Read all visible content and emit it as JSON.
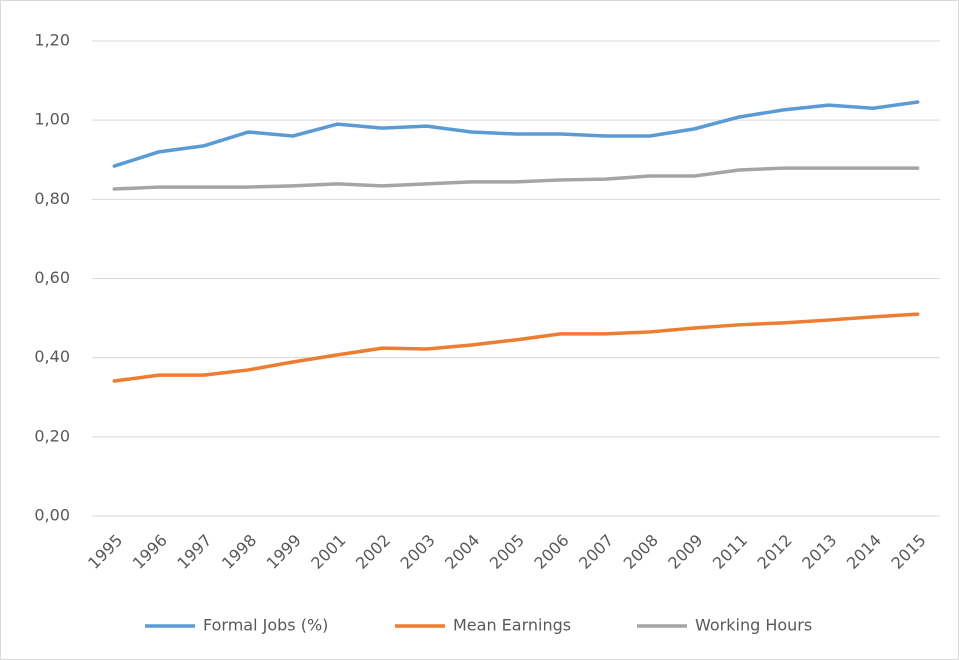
{
  "chart_data": {
    "type": "line",
    "categories": [
      "1995",
      "1996",
      "1997",
      "1998",
      "1999",
      "2001",
      "2002",
      "2003",
      "2004",
      "2005",
      "2006",
      "2007",
      "2008",
      "2009",
      "2011",
      "2012",
      "2013",
      "2014",
      "2015"
    ],
    "series": [
      {
        "name": "Formal Jobs (%)",
        "color": "#5b9bd5",
        "values": [
          0.884,
          0.92,
          0.935,
          0.97,
          0.96,
          0.99,
          0.98,
          0.985,
          0.97,
          0.965,
          0.965,
          0.96,
          0.96,
          0.978,
          1.008,
          1.026,
          1.038,
          1.03,
          1.046
        ]
      },
      {
        "name": "Mean Earnings",
        "color": "#ed7d31",
        "values": [
          0.341,
          0.356,
          0.356,
          0.369,
          0.389,
          0.407,
          0.424,
          0.422,
          0.432,
          0.445,
          0.46,
          0.46,
          0.465,
          0.475,
          0.483,
          0.488,
          0.495,
          0.503,
          0.51
        ]
      },
      {
        "name": "Working Hours",
        "color": "#a5a5a5",
        "values": [
          0.826,
          0.831,
          0.831,
          0.831,
          0.834,
          0.839,
          0.834,
          0.839,
          0.844,
          0.844,
          0.849,
          0.851,
          0.859,
          0.859,
          0.874,
          0.879,
          0.879,
          0.879,
          0.879
        ]
      }
    ],
    "ylim": [
      0,
      1.2
    ],
    "yticks": [
      {
        "value": 0,
        "label": "0,00"
      },
      {
        "value": 0.2,
        "label": "0,20"
      },
      {
        "value": 0.4,
        "label": "0,40"
      },
      {
        "value": 0.6,
        "label": "0,60"
      },
      {
        "value": 0.8,
        "label": "0,80"
      },
      {
        "value": 1,
        "label": "1,00"
      },
      {
        "value": 1.2,
        "label": "1,20"
      }
    ],
    "grid": true,
    "legend": "bottom"
  }
}
